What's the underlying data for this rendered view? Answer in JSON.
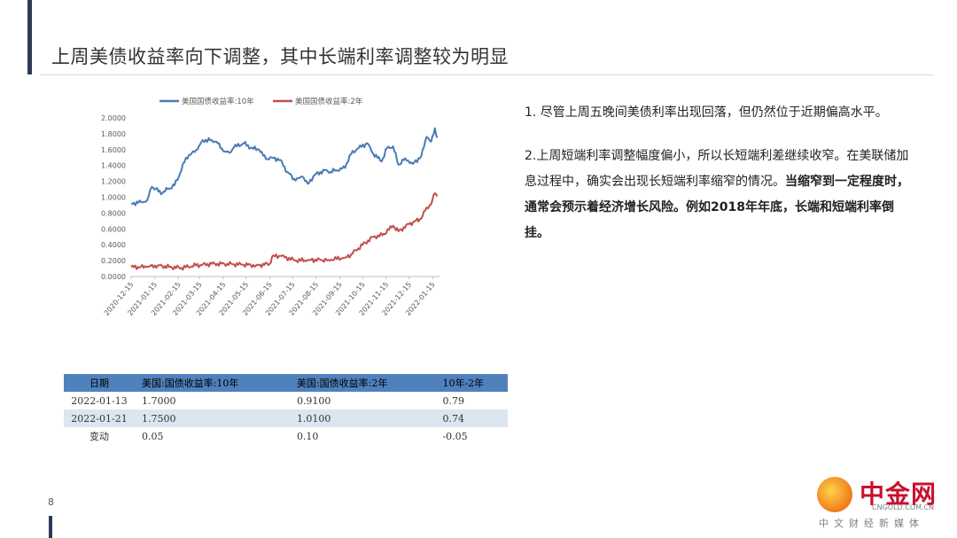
{
  "slide": {
    "title": "上周美债收益率向下调整，其中长端利率调整较为明显",
    "page_number": "8"
  },
  "chart_data": {
    "type": "line",
    "series": [
      {
        "name": "美国国债收益率:10年",
        "color": "#4a7ab5",
        "points": [
          [
            "2020-12-15",
            0.92
          ],
          [
            "2020-12-28",
            0.94
          ],
          [
            "2021-01-05",
            0.96
          ],
          [
            "2021-01-11",
            1.13
          ],
          [
            "2021-01-25",
            1.05
          ],
          [
            "2021-02-01",
            1.1
          ],
          [
            "2021-02-10",
            1.15
          ],
          [
            "2021-02-19",
            1.34
          ],
          [
            "2021-02-25",
            1.5
          ],
          [
            "2021-03-05",
            1.56
          ],
          [
            "2021-03-12",
            1.6
          ],
          [
            "2021-03-19",
            1.72
          ],
          [
            "2021-03-31",
            1.72
          ],
          [
            "2021-04-06",
            1.7
          ],
          [
            "2021-04-15",
            1.58
          ],
          [
            "2021-04-23",
            1.56
          ],
          [
            "2021-04-29",
            1.63
          ],
          [
            "2021-05-12",
            1.68
          ],
          [
            "2021-05-21",
            1.62
          ],
          [
            "2021-06-01",
            1.6
          ],
          [
            "2021-06-10",
            1.48
          ],
          [
            "2021-06-18",
            1.5
          ],
          [
            "2021-06-29",
            1.47
          ],
          [
            "2021-07-08",
            1.32
          ],
          [
            "2021-07-19",
            1.21
          ],
          [
            "2021-07-28",
            1.26
          ],
          [
            "2021-08-04",
            1.17
          ],
          [
            "2021-08-13",
            1.28
          ],
          [
            "2021-08-26",
            1.34
          ],
          [
            "2021-09-03",
            1.32
          ],
          [
            "2021-09-10",
            1.34
          ],
          [
            "2021-09-22",
            1.37
          ],
          [
            "2021-09-28",
            1.53
          ],
          [
            "2021-10-08",
            1.61
          ],
          [
            "2021-10-21",
            1.68
          ],
          [
            "2021-10-29",
            1.55
          ],
          [
            "2021-11-09",
            1.45
          ],
          [
            "2021-11-16",
            1.62
          ],
          [
            "2021-11-24",
            1.64
          ],
          [
            "2021-12-01",
            1.41
          ],
          [
            "2021-12-10",
            1.49
          ],
          [
            "2021-12-20",
            1.42
          ],
          [
            "2021-12-31",
            1.52
          ],
          [
            "2022-01-07",
            1.76
          ],
          [
            "2022-01-13",
            1.7
          ],
          [
            "2022-01-18",
            1.87
          ],
          [
            "2022-01-21",
            1.75
          ]
        ]
      },
      {
        "name": "美国国债收益率:2年",
        "color": "#c0504d",
        "points": [
          [
            "2020-12-15",
            0.12
          ],
          [
            "2021-01-04",
            0.12
          ],
          [
            "2021-01-19",
            0.14
          ],
          [
            "2021-02-03",
            0.12
          ],
          [
            "2021-02-19",
            0.11
          ],
          [
            "2021-03-10",
            0.14
          ],
          [
            "2021-03-31",
            0.16
          ],
          [
            "2021-04-20",
            0.16
          ],
          [
            "2021-05-10",
            0.15
          ],
          [
            "2021-05-28",
            0.14
          ],
          [
            "2021-06-15",
            0.16
          ],
          [
            "2021-06-18",
            0.25
          ],
          [
            "2021-06-29",
            0.26
          ],
          [
            "2021-07-20",
            0.2
          ],
          [
            "2021-08-06",
            0.21
          ],
          [
            "2021-08-31",
            0.21
          ],
          [
            "2021-09-22",
            0.24
          ],
          [
            "2021-09-30",
            0.28
          ],
          [
            "2021-10-15",
            0.4
          ],
          [
            "2021-10-29",
            0.5
          ],
          [
            "2021-11-10",
            0.52
          ],
          [
            "2021-11-24",
            0.64
          ],
          [
            "2021-12-01",
            0.57
          ],
          [
            "2021-12-15",
            0.66
          ],
          [
            "2021-12-31",
            0.73
          ],
          [
            "2022-01-07",
            0.87
          ],
          [
            "2022-01-13",
            0.91
          ],
          [
            "2022-01-18",
            1.05
          ],
          [
            "2022-01-21",
            1.01
          ]
        ]
      }
    ],
    "y_ticks": [
      "2.0000",
      "1.8000",
      "1.6000",
      "1.4000",
      "1.2000",
      "1.0000",
      "0.8000",
      "0.6000",
      "0.4000",
      "0.2000",
      "0.0000"
    ],
    "x_ticks": [
      "2020-12-15",
      "2021-01-15",
      "2021-02-15",
      "2021-03-15",
      "2021-04-15",
      "2021-05-15",
      "2021-06-15",
      "2021-07-15",
      "2021-08-15",
      "2021-09-15",
      "2021-10-15",
      "2021-11-15",
      "2021-12-15",
      "2022-01-15"
    ],
    "y_range": [
      0,
      2.0
    ],
    "x_range": [
      "2020-12-15",
      "2022-01-24"
    ],
    "legend_position": "top-center",
    "grid": false
  },
  "table": {
    "headers": [
      "日期",
      "美国:国债收益率:10年",
      "美国:国债收益率:2年",
      "10年-2年"
    ],
    "rows": [
      [
        "2022-01-13",
        "1.7000",
        "0.9100",
        "0.79"
      ],
      [
        "2022-01-21",
        "1.7500",
        "1.0100",
        "0.74"
      ],
      [
        "变动",
        "0.05",
        "0.10",
        "-0.05"
      ]
    ]
  },
  "notes": {
    "p1": "1. 尽管上周五晚间美债利率出现回落，但仍然位于近期偏高水平。",
    "p2_plain": "2.上周短端利率调整幅度偏小，所以长短端利差继续收窄。在美联储加息过程中，确实会出现长短端利率缩窄的情况。",
    "p2_bold": "当缩窄到一定程度时，通常会预示着经济增长风险。例如2018年年底，长端和短端利率倒挂。"
  },
  "logo": {
    "main": "中金网",
    "sub": "CNGOLD.COM.CN",
    "cn": "中文财经新媒体"
  }
}
